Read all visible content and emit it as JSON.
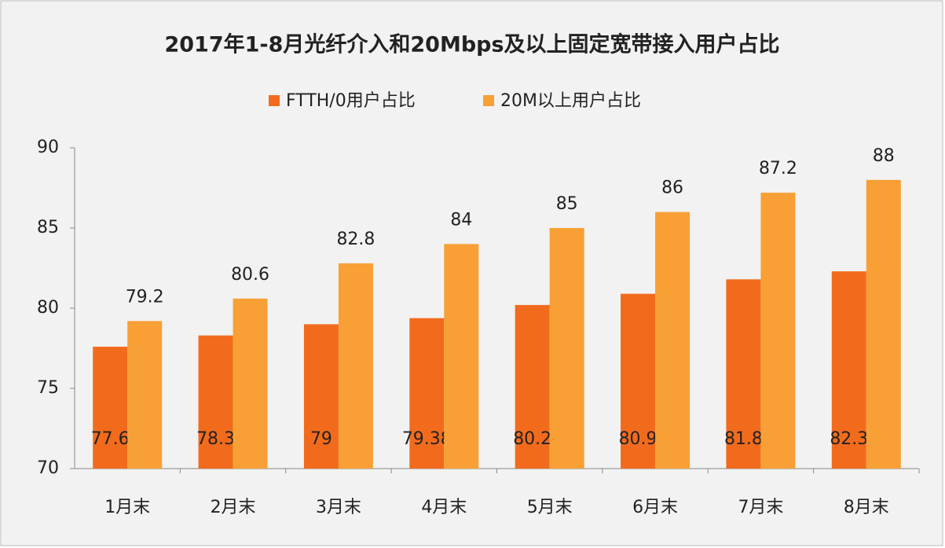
{
  "chart_data": {
    "type": "bar",
    "title": "2017年1-8月光纤介入和20Mbps及以上固定宽带接入用户占比",
    "categories": [
      "1月末",
      "2月末",
      "3月末",
      "4月末",
      "5月末",
      "6月末",
      "7月末",
      "8月末"
    ],
    "series": [
      {
        "name": "FTTH/0用户占比",
        "color": "#f26b1d",
        "values": [
          77.6,
          78.3,
          79,
          79.38,
          80.2,
          80.9,
          81.8,
          82.3
        ]
      },
      {
        "name": "20M以上用户占比",
        "color": "#f8a035",
        "values": [
          79.2,
          80.6,
          82.8,
          84,
          85,
          86,
          87.2,
          88
        ]
      }
    ],
    "ylim": [
      70,
      90
    ],
    "yticks": [
      70,
      75,
      80,
      85,
      90
    ],
    "grid": false
  }
}
